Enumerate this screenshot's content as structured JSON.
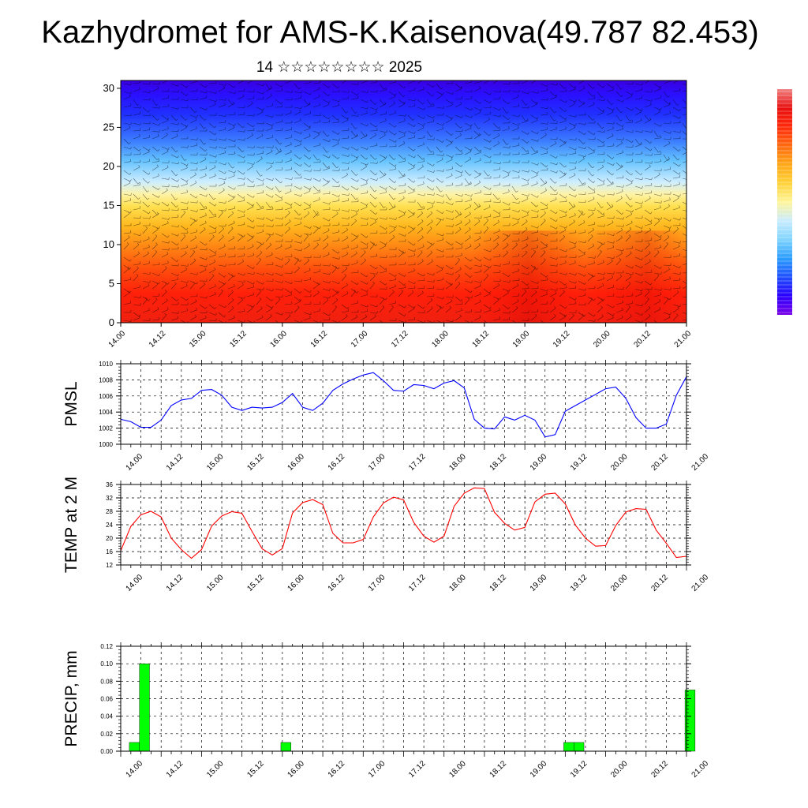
{
  "title": "Kazhydromet for AMS-K.Kaisenova(49.787 82.453)",
  "subtitle": "14 ☆☆☆☆☆☆☆☆ 2025",
  "chart_data": [
    {
      "type": "heatmap",
      "id": "cross-section",
      "ylabel": "",
      "xlabel": "",
      "x_ticks": [
        "14.00",
        "14.12",
        "15.00",
        "15.12",
        "16.00",
        "16.12",
        "17.00",
        "17.12",
        "18.00",
        "18.12",
        "19.00",
        "19.12",
        "20.00",
        "20.12",
        "21.00"
      ],
      "y_ticks": [
        0,
        5,
        10,
        15,
        20,
        25,
        30
      ],
      "ylim": [
        0,
        31
      ],
      "colorbar": true,
      "description_of_field": "warm (red) near surface grading to yellow near 15, blue above 20, purple near 25-31; overlaid with wind barbs",
      "colors": [
        "#7a00e6",
        "#2b00ff",
        "#1f4fff",
        "#2a9dff",
        "#7fd4ff",
        "#c9ecff",
        "#fff59a",
        "#ffd23a",
        "#ffa818",
        "#ff6a10",
        "#ff2a0a",
        "#e81010",
        "#f08080"
      ]
    },
    {
      "type": "line",
      "id": "pmsl",
      "ylabel": "PMSL",
      "ylim": [
        1000,
        1010
      ],
      "y_ticks": [
        1000,
        1002,
        1004,
        1006,
        1008,
        1010
      ],
      "x_ticks": [
        "14.00",
        "14.12",
        "15.00",
        "15.12",
        "16.00",
        "16.12",
        "17.00",
        "17.12",
        "18.00",
        "18.12",
        "19.00",
        "19.12",
        "20.00",
        "20.12",
        "21.00"
      ],
      "grid": true,
      "color": "#0000ff",
      "x": [
        0,
        3,
        6,
        9,
        12,
        15,
        18,
        21,
        24,
        27,
        30,
        33,
        36,
        39,
        42,
        45,
        48,
        51,
        54,
        57,
        60,
        63,
        66,
        69,
        72,
        75,
        78,
        81,
        84,
        87,
        90,
        93,
        96,
        99,
        102,
        105,
        108,
        111,
        114,
        117,
        120,
        123,
        126,
        129,
        132,
        135,
        138,
        141,
        144,
        147,
        150,
        153,
        156,
        159,
        162,
        165,
        168
      ],
      "values": [
        1003.1,
        1002.8,
        1002.1,
        1002.1,
        1003.0,
        1004.8,
        1005.5,
        1005.7,
        1006.7,
        1006.8,
        1006.1,
        1004.6,
        1004.2,
        1004.6,
        1004.5,
        1004.6,
        1005.2,
        1006.3,
        1004.6,
        1004.2,
        1005.1,
        1006.7,
        1007.5,
        1008.1,
        1008.6,
        1008.9,
        1007.9,
        1006.7,
        1006.6,
        1007.4,
        1007.3,
        1006.9,
        1007.6,
        1007.9,
        1007.0,
        1003.1,
        1002.0,
        1001.9,
        1003.4,
        1003.0,
        1003.6,
        1003.0,
        1000.9,
        1001.2,
        1004.1,
        1004.8,
        1005.5,
        1006.2,
        1006.9,
        1007.1,
        1005.7,
        1003.3,
        1002.0,
        1002.0,
        1002.5,
        1006.1,
        1008.4
      ]
    },
    {
      "type": "line",
      "id": "temp2m",
      "ylabel": "TEMP at 2 M",
      "ylim": [
        12,
        36
      ],
      "y_ticks": [
        12,
        16,
        20,
        24,
        28,
        32,
        36
      ],
      "x_ticks": [
        "14.00",
        "14.12",
        "15.00",
        "15.12",
        "16.00",
        "16.12",
        "17.00",
        "17.12",
        "18.00",
        "18.12",
        "19.00",
        "19.12",
        "20.00",
        "20.12",
        "21.00"
      ],
      "grid": true,
      "color": "#ff0000",
      "x": [
        0,
        3,
        6,
        9,
        12,
        15,
        18,
        21,
        24,
        27,
        30,
        33,
        36,
        39,
        42,
        45,
        48,
        51,
        54,
        57,
        60,
        63,
        66,
        69,
        72,
        75,
        78,
        81,
        84,
        87,
        90,
        93,
        96,
        99,
        102,
        105,
        108,
        111,
        114,
        117,
        120,
        123,
        126,
        129,
        132,
        135,
        138,
        141,
        144,
        147,
        150,
        153,
        156,
        159,
        162,
        165,
        168
      ],
      "values": [
        16.2,
        23.5,
        27.0,
        28.0,
        26.3,
        20.0,
        16.6,
        14.0,
        16.6,
        23.6,
        26.6,
        27.9,
        27.4,
        22.0,
        16.8,
        15.0,
        16.9,
        27.5,
        30.6,
        31.5,
        30.0,
        21.4,
        18.6,
        18.6,
        19.6,
        26.3,
        30.5,
        32.2,
        31.4,
        24.7,
        20.6,
        18.8,
        20.6,
        29.5,
        33.4,
        35.0,
        34.8,
        27.7,
        24.4,
        22.4,
        23.2,
        30.8,
        33.1,
        33.4,
        30.2,
        23.9,
        20.0,
        17.6,
        17.8,
        23.8,
        27.8,
        28.8,
        28.6,
        22.4,
        18.5,
        14.2,
        14.6
      ]
    },
    {
      "type": "bar",
      "id": "precip",
      "ylabel": "PRECIP, mm",
      "ylim": [
        0,
        0.12
      ],
      "y_ticks": [
        "0.00",
        "0.02",
        "0.04",
        "0.06",
        "0.08",
        "0.10",
        "0.12"
      ],
      "x_ticks": [
        "14.00",
        "14.12",
        "15.00",
        "15.12",
        "16.00",
        "16.12",
        "17.00",
        "17.12",
        "18.00",
        "18.12",
        "19.00",
        "19.12",
        "20.00",
        "20.12",
        "21.00"
      ],
      "grid": true,
      "color": "#00ff00",
      "x": [
        0,
        3,
        45,
        129,
        132,
        165
      ],
      "values": [
        0.01,
        0.1,
        0.01,
        0.01,
        0.01,
        0.07
      ]
    }
  ]
}
